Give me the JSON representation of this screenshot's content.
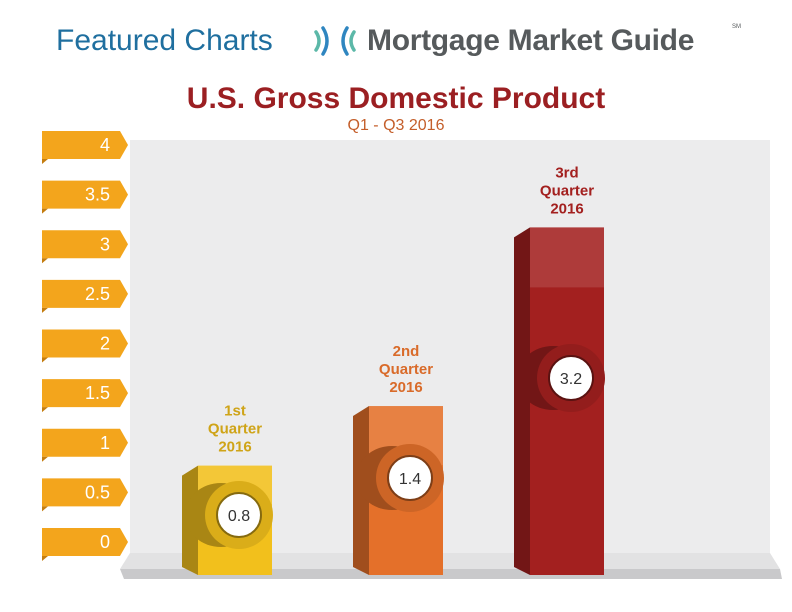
{
  "header": {
    "left": "Featured Charts",
    "right": "Mortgage Market Guide",
    "sm": "SM"
  },
  "chart_data": {
    "type": "bar",
    "title": "U.S. Gross Domestic Product",
    "subtitle": "Q1 - Q3 2016",
    "categories": [
      "1st Quarter 2016",
      "2nd Quarter 2016",
      "3rd Quarter 2016"
    ],
    "category_lines": [
      [
        "1st",
        "Quarter",
        "2016"
      ],
      [
        "2nd",
        "Quarter",
        "2016"
      ],
      [
        "3rd",
        "Quarter",
        "2016"
      ]
    ],
    "values": [
      0.8,
      1.4,
      3.2
    ],
    "value_labels": [
      "0.8",
      "1.4",
      "3.2"
    ],
    "yticks": [
      "0",
      "0.5",
      "1",
      "1.5",
      "2",
      "2.5",
      "3",
      "3.5",
      "4"
    ],
    "ylim": [
      0,
      4
    ],
    "grid": false,
    "legend": "none",
    "colors": {
      "bars": [
        "#f2c01c",
        "#e4702a",
        "#a3201f"
      ],
      "labels": [
        "#cfa418",
        "#d96b2a",
        "#a3201f"
      ],
      "ticks": "#f3a51c",
      "panel": "#ececed"
    }
  }
}
